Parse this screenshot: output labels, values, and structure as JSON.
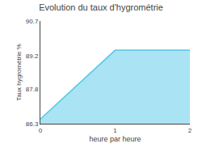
{
  "chart_data": {
    "type": "area",
    "title": "Evolution du taux d'hygrométrie",
    "xlabel": "heure par heure",
    "ylabel": "Taux hygrométrie %",
    "x": [
      0,
      1,
      2
    ],
    "values": [
      86.5,
      89.45,
      89.45
    ],
    "color": "#55c8e8",
    "xlim": [
      0,
      2
    ],
    "xticks": [
      0,
      1,
      2
    ],
    "ylim": [
      86.3,
      90.7
    ],
    "yticks": [
      86.3,
      87.8,
      89.2,
      90.7
    ],
    "grid": false
  }
}
